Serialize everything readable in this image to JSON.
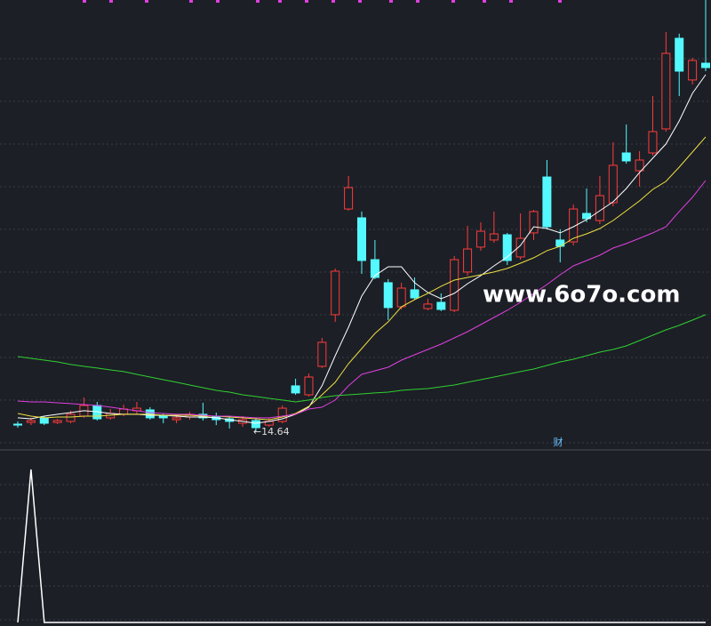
{
  "chart_data": {
    "type": "candlestick",
    "open": [
      15.19,
      15.31,
      15.63,
      15.31,
      15.38,
      15.75,
      16.5,
      15.63,
      15.88,
      16.13,
      16.19,
      15.75,
      15.5,
      15.69,
      15.88,
      15.69,
      15.56,
      15.25,
      15.44,
      15.12,
      15.38,
      17.88,
      17.25,
      19.25,
      22.88,
      30.31,
      29.69,
      26.75,
      25.13,
      23.44,
      24.63,
      23.31,
      23.75,
      23.19,
      25.88,
      27.63,
      28.13,
      28.5,
      26.94,
      28.63,
      32.56,
      28.13,
      28.0,
      30.0,
      29.5,
      30.75,
      34.25,
      33.0,
      34.25,
      35.94,
      42.31,
      39.38,
      40.56
    ],
    "high": [
      15.38,
      15.63,
      15.75,
      15.56,
      16.13,
      17.06,
      16.75,
      16.25,
      16.56,
      16.75,
      16.38,
      15.94,
      15.75,
      16.06,
      16.69,
      16.0,
      15.75,
      15.75,
      15.63,
      15.63,
      16.5,
      18.38,
      18.75,
      21.25,
      26.13,
      32.63,
      30.13,
      28.13,
      25.38,
      25.13,
      25.5,
      24.0,
      24.38,
      27.0,
      29.13,
      29.38,
      30.13,
      28.63,
      30.0,
      30.25,
      33.75,
      28.88,
      30.63,
      31.75,
      32.63,
      35.0,
      36.25,
      34.38,
      38.25,
      42.75,
      42.63,
      40.94,
      45.0
    ],
    "low": [
      14.94,
      15.12,
      15.12,
      15.19,
      15.25,
      15.63,
      15.44,
      15.5,
      15.75,
      15.88,
      15.5,
      15.25,
      15.25,
      15.5,
      15.44,
      15.12,
      14.88,
      15.0,
      14.64,
      15.0,
      15.25,
      17.25,
      17.13,
      19.13,
      22.38,
      30.19,
      25.75,
      25.38,
      22.5,
      23.25,
      23.94,
      23.19,
      23.13,
      23.06,
      25.63,
      27.38,
      27.94,
      26.38,
      26.75,
      28.13,
      28.88,
      26.56,
      27.75,
      29.38,
      29.25,
      30.5,
      33.5,
      31.88,
      34.06,
      35.75,
      38.25,
      39.06,
      40.0
    ],
    "close": [
      15.12,
      15.44,
      15.25,
      15.44,
      15.88,
      16.5,
      15.56,
      15.94,
      16.25,
      16.31,
      15.63,
      15.63,
      15.63,
      15.88,
      15.63,
      15.5,
      15.38,
      15.5,
      14.94,
      15.38,
      16.31,
      17.38,
      18.5,
      20.94,
      25.94,
      31.81,
      26.69,
      25.5,
      23.38,
      24.75,
      24.06,
      23.63,
      23.25,
      26.75,
      27.5,
      28.75,
      28.56,
      26.69,
      28.25,
      30.13,
      29.06,
      27.69,
      30.31,
      29.63,
      31.25,
      33.38,
      33.69,
      33.75,
      35.75,
      41.25,
      40.0,
      40.75,
      40.25
    ],
    "ylim": [
      13.5,
      45
    ],
    "up_color": "#ff3b3b",
    "down_color": "#54f9ff",
    "series": [
      {
        "color": "#ffffff",
        "values": [
          15.63,
          15.56,
          15.75,
          15.88,
          16.0,
          16.13,
          16.06,
          15.94,
          15.88,
          15.88,
          15.81,
          15.81,
          15.75,
          15.69,
          15.69,
          15.63,
          15.5,
          15.38,
          15.25,
          15.38,
          15.56,
          15.88,
          16.38,
          17.88,
          20.0,
          22.0,
          24.19,
          25.63,
          26.25,
          26.25,
          25.13,
          24.44,
          24.0,
          24.38,
          25.06,
          25.63,
          26.31,
          26.94,
          27.75,
          29.06,
          28.94,
          28.63,
          29.06,
          29.56,
          30.19,
          30.81,
          31.75,
          32.88,
          33.88,
          34.88,
          36.5,
          38.44,
          39.75
        ]
      },
      {
        "color": "#f0e040",
        "values": [
          15.94,
          15.75,
          15.63,
          15.69,
          15.69,
          15.75,
          15.75,
          15.81,
          15.88,
          15.88,
          15.88,
          15.81,
          15.81,
          15.81,
          15.75,
          15.75,
          15.69,
          15.63,
          15.56,
          15.5,
          15.69,
          15.94,
          16.44,
          17.25,
          18.13,
          19.44,
          20.5,
          21.56,
          22.38,
          23.44,
          23.94,
          24.38,
          24.88,
          25.31,
          25.5,
          25.69,
          25.88,
          26.13,
          26.5,
          26.88,
          27.38,
          27.69,
          28.25,
          28.56,
          28.94,
          29.5,
          30.19,
          30.88,
          31.69,
          32.25,
          33.25,
          34.31,
          35.38
        ]
      },
      {
        "color": "#e040e0",
        "values": [
          16.81,
          16.75,
          16.75,
          16.69,
          16.63,
          16.56,
          16.5,
          16.38,
          16.25,
          16.13,
          16.0,
          15.94,
          15.88,
          15.88,
          15.81,
          15.75,
          15.75,
          15.69,
          15.63,
          15.63,
          15.75,
          15.88,
          16.25,
          16.38,
          16.88,
          17.88,
          18.69,
          18.94,
          19.19,
          19.69,
          20.06,
          20.44,
          20.81,
          21.25,
          21.69,
          22.19,
          22.69,
          23.19,
          23.75,
          24.38,
          25.0,
          25.69,
          26.31,
          26.69,
          27.06,
          27.56,
          27.88,
          28.25,
          28.63,
          29.06,
          30.13,
          31.13,
          32.31
        ]
      },
      {
        "color": "#30d030",
        "values": [
          19.94,
          19.81,
          19.69,
          19.56,
          19.38,
          19.25,
          19.13,
          19.0,
          18.88,
          18.69,
          18.5,
          18.31,
          18.13,
          17.94,
          17.75,
          17.56,
          17.44,
          17.25,
          17.13,
          17.0,
          16.88,
          16.75,
          16.88,
          17.06,
          17.19,
          17.25,
          17.31,
          17.38,
          17.44,
          17.56,
          17.63,
          17.69,
          17.81,
          17.94,
          18.13,
          18.31,
          18.5,
          18.69,
          18.88,
          19.06,
          19.31,
          19.56,
          19.75,
          20.0,
          20.25,
          20.44,
          20.69,
          21.06,
          21.44,
          21.81,
          22.13,
          22.5,
          22.88
        ]
      }
    ],
    "low_label": "←14.64",
    "watermark": "www.6o7o.com",
    "marker_text": "财",
    "indicator": {
      "color": "#ffffff",
      "ylim": [
        0,
        1
      ],
      "values": [
        0,
        1,
        0,
        0,
        0,
        0,
        0,
        0,
        0,
        0,
        0,
        0,
        0,
        0,
        0,
        0,
        0,
        0,
        0,
        0,
        0,
        0,
        0,
        0,
        0,
        0,
        0,
        0,
        0,
        0,
        0,
        0,
        0,
        0,
        0,
        0,
        0,
        0,
        0,
        0,
        0,
        0,
        0,
        0,
        0,
        0,
        0,
        0,
        0,
        0,
        0,
        0,
        0
      ]
    }
  }
}
